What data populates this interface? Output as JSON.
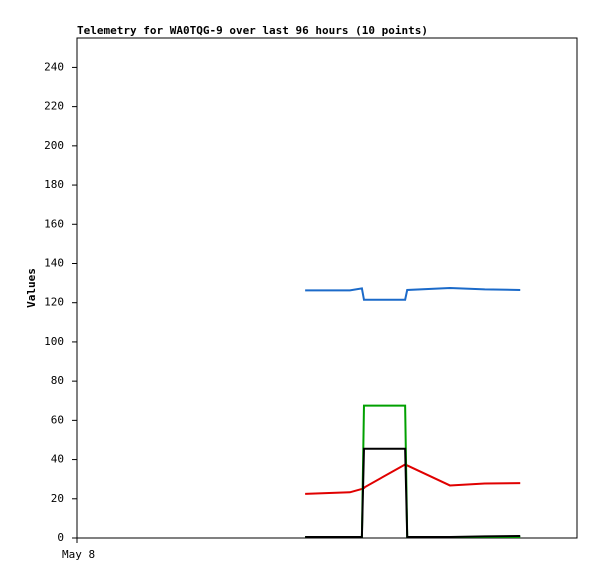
{
  "chart_data": {
    "type": "line",
    "title": "Telemetry for WA0TQG-9 over last 96 hours (10 points)",
    "ylabel": "Values",
    "x": [
      43.8,
      52.4,
      54.7,
      55.1,
      55.3,
      63.0,
      63.4,
      71.6,
      78.3,
      85.1
    ],
    "xlim": [
      0,
      96
    ],
    "xticks": [
      {
        "value": 0,
        "label": "May 8"
      }
    ],
    "ylim": [
      0,
      255
    ],
    "yticks": [
      0,
      20,
      40,
      60,
      80,
      100,
      120,
      140,
      160,
      180,
      200,
      220,
      240
    ],
    "grid": false,
    "series": [
      {
        "color": "#1b6ac9",
        "values": [
          126.3,
          126.3,
          127.3,
          121.5,
          121.5,
          121.5,
          126.5,
          127.5,
          126.8,
          126.5
        ]
      },
      {
        "color": "#e00000",
        "values": [
          22.5,
          23.3,
          25,
          25.5,
          26,
          37.5,
          37,
          26.8,
          27.8,
          28
        ]
      },
      {
        "color": "#00a000",
        "values": [
          0.5,
          0.5,
          0.5,
          67.5,
          67.5,
          67.5,
          0.5,
          0.5,
          0.5,
          0.5
        ]
      },
      {
        "color": "#000000",
        "values": [
          0.5,
          0.5,
          0.5,
          45.5,
          45.5,
          45.5,
          0.5,
          0.5,
          0.8,
          1
        ]
      }
    ]
  }
}
